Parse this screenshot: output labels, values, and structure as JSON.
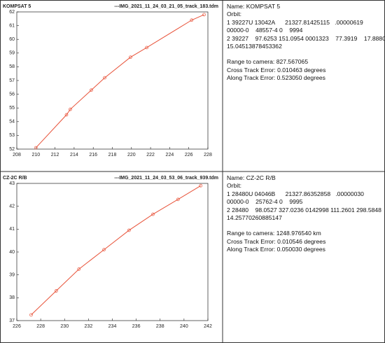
{
  "chart_data": [
    {
      "type": "line",
      "title": "KOMPSAT 5",
      "subtitle": "---IMG_2021_11_24_03_21_05_track_183.tdm",
      "x": [
        210,
        213.2,
        213.6,
        215.8,
        217.2,
        219.9,
        221.6,
        226.3,
        227.6
      ],
      "values": [
        52.1,
        54.5,
        54.9,
        56.3,
        57.2,
        58.7,
        59.4,
        61.4,
        61.8
      ],
      "color": "#e8533a",
      "xlim": [
        208,
        228
      ],
      "xticks": [
        208,
        210,
        212,
        214,
        216,
        218,
        220,
        222,
        224,
        226,
        228
      ],
      "ylim": [
        52,
        62
      ],
      "yticks": [
        52,
        53,
        54,
        55,
        56,
        57,
        58,
        59,
        60,
        61,
        62
      ],
      "grid": false
    },
    {
      "type": "line",
      "title": "CZ-2C R/B",
      "subtitle": "---IMG_2021_11_24_03_53_06_track_939.tdm",
      "x": [
        227.2,
        229.3,
        231.2,
        233.3,
        235.4,
        237.4,
        239.5,
        241.4
      ],
      "values": [
        37.25,
        38.3,
        39.25,
        40.1,
        40.95,
        41.65,
        42.3,
        42.9
      ],
      "color": "#e8533a",
      "xlim": [
        226,
        242
      ],
      "xticks": [
        226,
        228,
        230,
        232,
        234,
        236,
        238,
        240,
        242
      ],
      "ylim": [
        37,
        43
      ],
      "yticks": [
        37,
        38,
        39,
        40,
        41,
        42,
        43
      ],
      "grid": false
    }
  ],
  "panels": [
    {
      "header_lines": [
        "Name: KOMPSAT 5",
        "Orbit:",
        "1 39227U 13042A      21327.81425115   .00000619",
        "00000-0    48557-4 0    9994",
        "2 39227    97.6253 151.0954 0001323    77.3919    17.8880",
        "15.04513878453362"
      ],
      "error_lines": [
        "Range to camera: 827.567065",
        "Cross Track Error: 0.010463 degrees",
        "Along Track Error: 0.523050 degrees"
      ]
    },
    {
      "header_lines": [
        "Name: CZ-2C R/B",
        "Orbit:",
        "1 28480U 04046B      21327.86352858   .00000030",
        "00000-0    25762-4 0    9995",
        "2 28480    98.0527 327.0236 0142998 111.2601 298.5848",
        "14.25770260885147"
      ],
      "error_lines": [
        "Range to camera: 1248.976540 km",
        "Cross Track Error: 0.010546 degrees",
        "Along Track Error: 0.050030 degrees"
      ]
    }
  ]
}
